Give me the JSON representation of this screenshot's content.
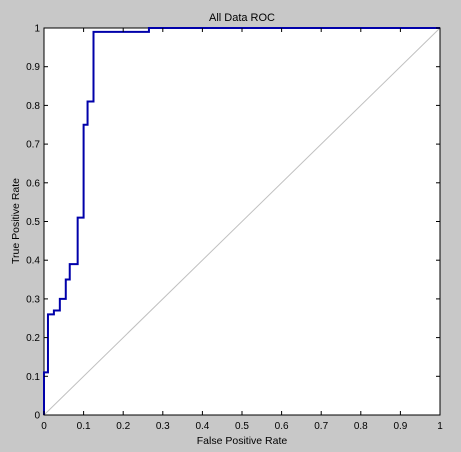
{
  "chart_data": {
    "type": "line",
    "title": "All Data ROC",
    "xlabel": "False Positive Rate",
    "ylabel": "True Positive Rate",
    "xlim": [
      0,
      1
    ],
    "ylim": [
      0,
      1
    ],
    "xticks": [
      "0",
      "0.1",
      "0.2",
      "0.3",
      "0.4",
      "0.5",
      "0.6",
      "0.7",
      "0.8",
      "0.9",
      "1"
    ],
    "yticks": [
      "0",
      "0.1",
      "0.2",
      "0.3",
      "0.4",
      "0.5",
      "0.6",
      "0.7",
      "0.8",
      "0.9",
      "1"
    ],
    "grid": false,
    "legend": "none",
    "series": [
      {
        "color": "#0000aa",
        "x": [
          0,
          0,
          0.01,
          0.01,
          0.025,
          0.025,
          0.04,
          0.04,
          0.055,
          0.055,
          0.065,
          0.065,
          0.075,
          0.075,
          0.085,
          0.085,
          0.1,
          0.1,
          0.11,
          0.11,
          0.125,
          0.125,
          0.265,
          0.265,
          0.99,
          1
        ],
        "y": [
          0,
          0.11,
          0.11,
          0.26,
          0.26,
          0.27,
          0.27,
          0.3,
          0.3,
          0.35,
          0.35,
          0.39,
          0.39,
          0.39,
          0.39,
          0.51,
          0.51,
          0.75,
          0.75,
          0.81,
          0.81,
          0.99,
          0.99,
          1,
          1,
          1
        ]
      },
      {
        "color": "#c0c0c0",
        "x": [
          0,
          1
        ],
        "y": [
          0,
          1
        ]
      }
    ]
  }
}
